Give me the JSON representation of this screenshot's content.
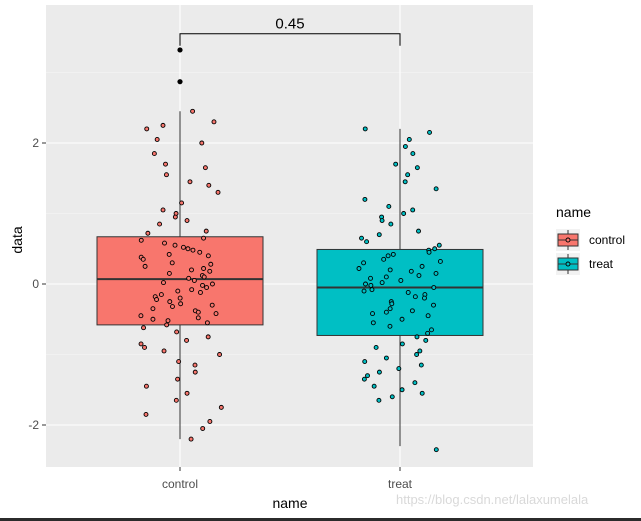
{
  "chart_data": {
    "type": "box",
    "title": "",
    "xlabel": "name",
    "ylabel": "data",
    "categories": [
      "control",
      "treat"
    ],
    "ylim": [
      -2.6,
      3.7
    ],
    "y_ticks": [
      -2,
      0,
      2
    ],
    "y_tick_labels": [
      "-2",
      "0",
      "2"
    ],
    "grid": true,
    "legend": {
      "title": "name",
      "position": "right",
      "entries": [
        {
          "label": "control",
          "color": "#F8766D"
        },
        {
          "label": "treat",
          "color": "#00BFC4"
        }
      ]
    },
    "annotation": {
      "label": "0.45",
      "between": [
        "control",
        "treat"
      ],
      "y": 3.55
    },
    "boxes": [
      {
        "category": "control",
        "color": "#F8766D",
        "q1": -0.58,
        "median": 0.07,
        "q3": 0.67,
        "whisker_low": -2.2,
        "whisker_high": 2.45
      },
      {
        "category": "treat",
        "color": "#00BFC4",
        "q1": -0.73,
        "median": -0.05,
        "q3": 0.49,
        "whisker_low": -2.3,
        "whisker_high": 2.2
      }
    ],
    "outliers": [
      {
        "category": "control",
        "y": 3.32
      },
      {
        "category": "control",
        "y": 2.87
      }
    ],
    "jitter_points": [
      {
        "category": "control",
        "values": [
          2.45,
          2.3,
          2.25,
          2.2,
          2.05,
          2.0,
          1.85,
          1.7,
          1.65,
          1.55,
          1.45,
          1.4,
          1.3,
          1.15,
          1.05,
          1.0,
          0.95,
          0.9,
          0.85,
          0.75,
          0.72,
          0.65,
          0.62,
          0.58,
          0.55,
          0.52,
          0.5,
          0.48,
          0.45,
          0.42,
          0.4,
          0.38,
          0.35,
          0.3,
          0.28,
          0.25,
          0.22,
          0.2,
          0.18,
          0.15,
          0.12,
          0.1,
          0.08,
          0.05,
          0.02,
          0.0,
          -0.02,
          -0.05,
          -0.08,
          -0.1,
          -0.12,
          -0.15,
          -0.18,
          -0.2,
          -0.22,
          -0.25,
          -0.28,
          -0.3,
          -0.32,
          -0.35,
          -0.38,
          -0.4,
          -0.42,
          -0.45,
          -0.48,
          -0.5,
          -0.52,
          -0.55,
          -0.58,
          -0.62,
          -0.68,
          -0.75,
          -0.8,
          -0.85,
          -0.9,
          -0.95,
          -1.0,
          -1.1,
          -1.15,
          -1.25,
          -1.35,
          -1.45,
          -1.55,
          -1.65,
          -1.75,
          -1.85,
          -1.95,
          -2.05,
          -2.2
        ]
      },
      {
        "category": "treat",
        "values": [
          2.2,
          2.15,
          2.05,
          1.95,
          1.85,
          1.7,
          1.65,
          1.55,
          1.45,
          1.35,
          1.2,
          1.1,
          1.05,
          1.0,
          0.95,
          0.9,
          0.85,
          0.75,
          0.7,
          0.65,
          0.6,
          0.55,
          0.5,
          0.48,
          0.45,
          0.42,
          0.4,
          0.35,
          0.32,
          0.3,
          0.25,
          0.22,
          0.2,
          0.18,
          0.15,
          0.12,
          0.1,
          0.08,
          0.05,
          0.02,
          0.0,
          -0.02,
          -0.05,
          -0.08,
          -0.1,
          -0.12,
          -0.15,
          -0.18,
          -0.2,
          -0.25,
          -0.28,
          -0.3,
          -0.35,
          -0.38,
          -0.4,
          -0.42,
          -0.45,
          -0.5,
          -0.55,
          -0.6,
          -0.65,
          -0.7,
          -0.75,
          -0.8,
          -0.85,
          -0.9,
          -0.95,
          -1.0,
          -1.05,
          -1.1,
          -1.15,
          -1.2,
          -1.25,
          -1.3,
          -1.35,
          -1.4,
          -1.45,
          -1.5,
          -1.55,
          -1.6,
          -1.65,
          -2.35
        ]
      }
    ]
  },
  "watermark": "https://blog.csdn.net/lalaxumelala"
}
